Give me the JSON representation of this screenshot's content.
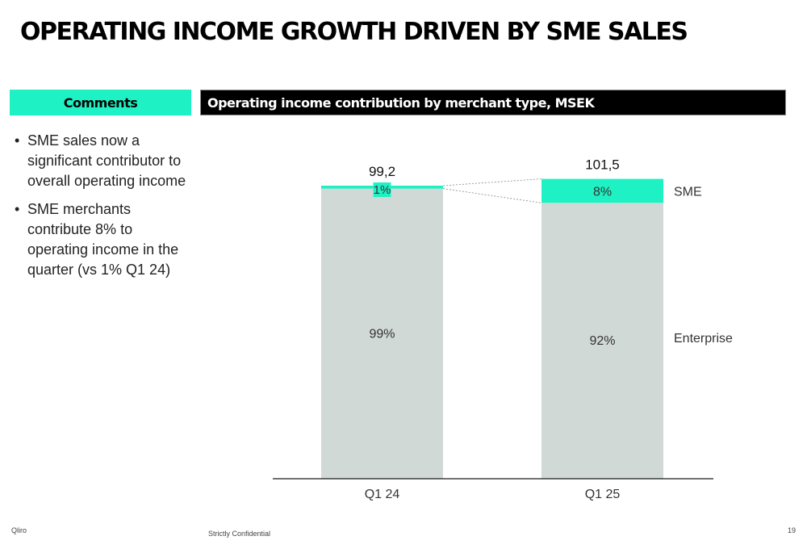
{
  "slide": {
    "title": "OPERATING INCOME GROWTH DRIVEN BY SME SALES",
    "comments_header": "Comments",
    "chart_header": "Operating income contribution by merchant type, MSEK",
    "bullets": [
      "SME sales now a significant contributor to overall operating income",
      "SME merchants contribute 8% to operating income in the quarter (vs 1% Q1 24)"
    ]
  },
  "footer": {
    "brand": "Qliro",
    "confidentiality": "Strictly Confidential",
    "page_number": "19"
  },
  "colors": {
    "sme": "#1ef2c4",
    "enterprise": "#d1d9d7",
    "axis": "#1a1a1a"
  },
  "chart_data": {
    "type": "bar",
    "stacked": true,
    "normalized_percent": true,
    "title": "Operating income contribution by merchant type, MSEK",
    "categories": [
      "Q1 24",
      "Q1 25"
    ],
    "totals": [
      99.2,
      101.5
    ],
    "total_labels": [
      "99,2",
      "101,5"
    ],
    "series": [
      {
        "name": "Enterprise",
        "values": [
          99,
          92
        ],
        "labels": [
          "99%",
          "92%"
        ],
        "color": "#d1d9d7"
      },
      {
        "name": "SME",
        "values": [
          1,
          8
        ],
        "labels": [
          "1%",
          "8%"
        ],
        "color": "#1ef2c4"
      }
    ],
    "ylim": [
      0,
      100
    ],
    "xlabel": "",
    "ylabel": "",
    "grid": false,
    "legend": "right, inline series labels"
  }
}
